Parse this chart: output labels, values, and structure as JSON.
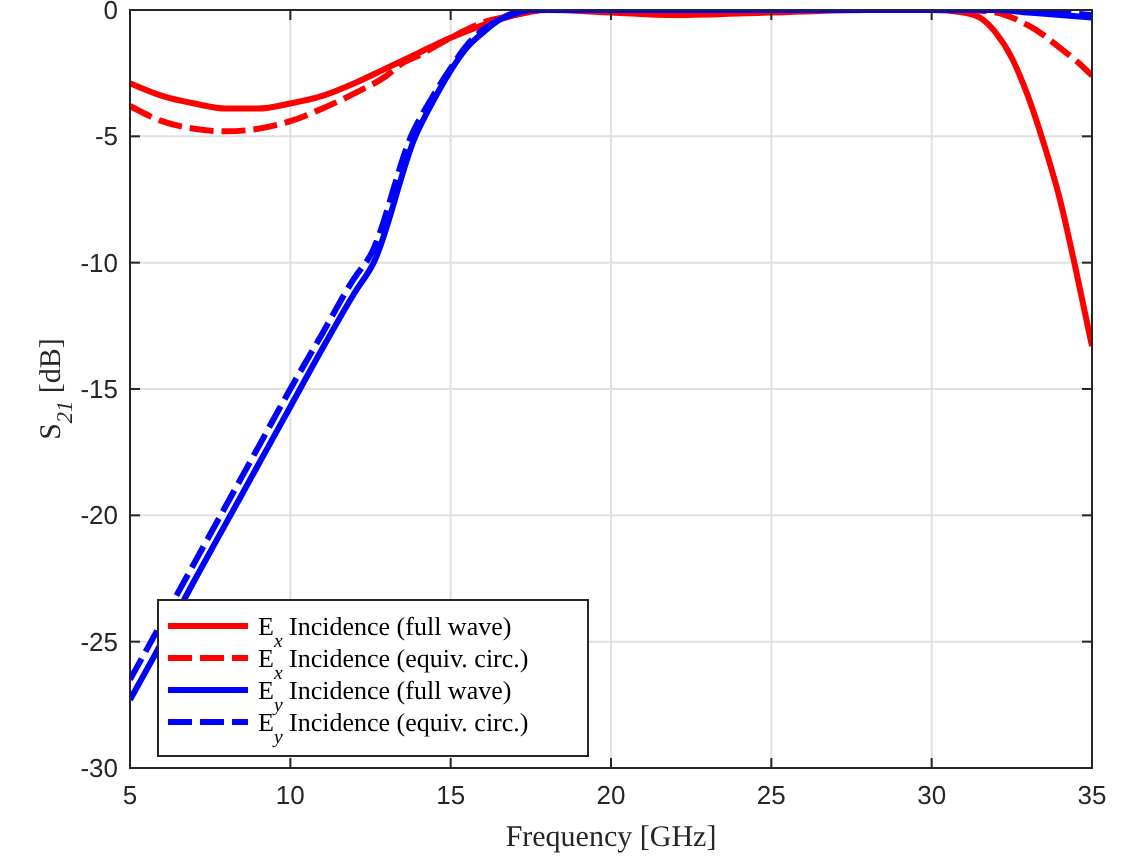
{
  "chart_data": {
    "type": "line",
    "xlabel": "Frequency [GHz]",
    "ylabel": "S$_{21}$ [dB]",
    "xlim": [
      5,
      35
    ],
    "ylim": [
      -30,
      0
    ],
    "xticks": [
      5,
      10,
      15,
      20,
      25,
      30,
      35
    ],
    "yticks": [
      -30,
      -25,
      -20,
      -15,
      -10,
      -5,
      0
    ],
    "grid": true,
    "legend": "bottom left",
    "marker": "none",
    "series": [
      {
        "name": "E$_{x}$ Incidence (full wave)",
        "color": "#ff0000",
        "line_style": "solid",
        "x": [
          5,
          6,
          7,
          8,
          8.5,
          9,
          10,
          11,
          12,
          13,
          14,
          15,
          16,
          17,
          17.5,
          18,
          20,
          22,
          25,
          28,
          30,
          31,
          31.5,
          32,
          32.5,
          33,
          33.5,
          34,
          34.5,
          35
        ],
        "values": [
          -2.9,
          -3.4,
          -3.7,
          -3.9,
          -3.9,
          -3.9,
          -3.7,
          -3.4,
          -2.9,
          -2.3,
          -1.7,
          -1.1,
          -0.6,
          -0.2,
          -0.05,
          0,
          -0.1,
          -0.2,
          -0.1,
          0,
          0,
          -0.1,
          -0.3,
          -0.9,
          -1.9,
          -3.4,
          -5.3,
          -7.5,
          -10.3,
          -13.3
        ]
      },
      {
        "name": "E$_{x}$ Incidence (equiv. circ.)",
        "color": "#ff0000",
        "line_style": "dashed",
        "x": [
          5,
          6,
          7,
          8,
          9,
          10,
          11,
          12,
          13,
          13.5,
          14,
          15,
          16,
          17,
          18,
          20,
          25,
          30,
          31,
          32,
          32.5,
          33,
          33.5,
          34,
          34.5,
          35
        ],
        "values": [
          -3.8,
          -4.4,
          -4.7,
          -4.8,
          -4.7,
          -4.4,
          -3.9,
          -3.3,
          -2.6,
          -2.1,
          -1.8,
          -1.1,
          -0.5,
          -0.2,
          0,
          0,
          0,
          0,
          0,
          -0.1,
          -0.3,
          -0.6,
          -1,
          -1.5,
          -2,
          -2.6
        ]
      },
      {
        "name": "E$_{y}$ Incidence (full wave)",
        "color": "#0000ff",
        "line_style": "solid",
        "x": [
          5,
          5.7,
          7,
          8,
          9,
          10,
          11,
          12,
          12.6,
          13.9,
          14.5,
          15,
          15.5,
          16,
          16.5,
          17,
          17.5,
          18,
          20,
          25,
          30,
          32,
          33,
          34,
          35
        ],
        "values": [
          -27.3,
          -25.7,
          -22.6,
          -20.3,
          -18,
          -15.7,
          -13.4,
          -11.2,
          -10,
          -5,
          -3.5,
          -2.4,
          -1.5,
          -0.9,
          -0.4,
          -0.15,
          0,
          0,
          0,
          0,
          0,
          0,
          -0.1,
          -0.2,
          -0.3
        ]
      },
      {
        "name": "E$_{y}$ Incidence (equiv. circ.)",
        "color": "#0000ff",
        "line_style": "dashed",
        "x": [
          5,
          5.7,
          7,
          8,
          9,
          10,
          11,
          12,
          12.5,
          13.8,
          14.5,
          15,
          15.5,
          16,
          16.5,
          17,
          17.5,
          18,
          20,
          25,
          30,
          32,
          33,
          34,
          35
        ],
        "values": [
          -26.5,
          -24.9,
          -21.9,
          -19.6,
          -17.3,
          -15,
          -12.8,
          -10.6,
          -9.7,
          -4.9,
          -3.3,
          -2.3,
          -1.4,
          -0.8,
          -0.4,
          -0.1,
          0,
          0,
          0,
          0,
          0,
          0,
          -0.05,
          -0.1,
          -0.2
        ]
      }
    ]
  }
}
